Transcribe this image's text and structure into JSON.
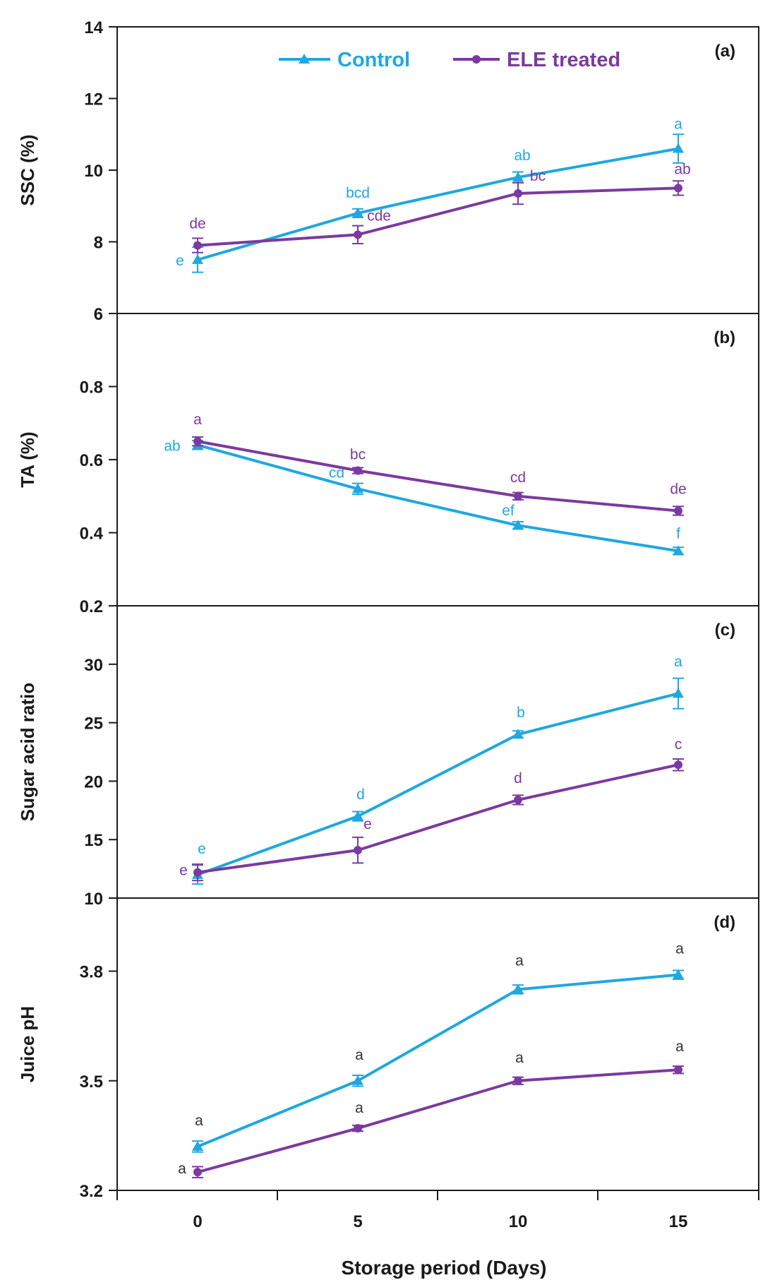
{
  "colors": {
    "control": "#1fa8df",
    "ele": "#7b3aa0",
    "axis": "#1a1a1a",
    "letter_dark": "#333333"
  },
  "legend": {
    "control": "Control",
    "ele": "ELE treated"
  },
  "xlabel": "Storage period (Days)",
  "x_ticks": [
    "0",
    "5",
    "10",
    "15"
  ],
  "chart_data": [
    {
      "type": "line",
      "panel_label": "(a)",
      "ylabel": "SSC (%)",
      "ylim": [
        6,
        14
      ],
      "yticks": [
        "6",
        "8",
        "10",
        "12",
        "14"
      ],
      "x": [
        0,
        5,
        10,
        15
      ],
      "series": [
        {
          "name": "Control",
          "values": [
            7.5,
            8.8,
            9.8,
            10.6
          ],
          "errors": [
            0.35,
            0.12,
            0.15,
            0.4
          ],
          "letters": [
            "e",
            "bcd",
            "ab",
            "a"
          ]
        },
        {
          "name": "ELE treated",
          "values": [
            7.9,
            8.2,
            9.35,
            9.5
          ],
          "errors": [
            0.2,
            0.25,
            0.3,
            0.2
          ],
          "letters": [
            "de",
            "cde",
            "bc",
            "ab"
          ]
        }
      ]
    },
    {
      "type": "line",
      "panel_label": "(b)",
      "ylabel": "TA (%)",
      "ylim": [
        0.2,
        1.0
      ],
      "yticks": [
        "0.2",
        "0.4",
        "0.6",
        "0.8"
      ],
      "x": [
        0,
        5,
        10,
        15
      ],
      "series": [
        {
          "name": "Control",
          "values": [
            0.64,
            0.52,
            0.42,
            0.35
          ],
          "errors": [
            0.012,
            0.015,
            0.01,
            0.01
          ],
          "letters": [
            "ab",
            "cd",
            "ef",
            "f"
          ]
        },
        {
          "name": "ELE treated",
          "values": [
            0.65,
            0.57,
            0.5,
            0.46
          ],
          "errors": [
            0.012,
            0.008,
            0.01,
            0.012
          ],
          "letters": [
            "a",
            "bc",
            "cd",
            "de"
          ]
        }
      ]
    },
    {
      "type": "line",
      "panel_label": "(c)",
      "ylabel": "Sugar acid ratio",
      "ylim": [
        10,
        35
      ],
      "yticks": [
        "10",
        "15",
        "20",
        "25",
        "30"
      ],
      "x": [
        0,
        5,
        10,
        15
      ],
      "series": [
        {
          "name": "Control",
          "values": [
            12.0,
            17.0,
            24.0,
            27.5
          ],
          "errors": [
            0.8,
            0.4,
            0.3,
            1.3
          ],
          "letters": [
            "e",
            "d",
            "b",
            "a"
          ]
        },
        {
          "name": "ELE treated",
          "values": [
            12.2,
            14.1,
            18.4,
            21.4
          ],
          "errors": [
            0.7,
            1.1,
            0.4,
            0.5
          ],
          "letters": [
            "e",
            "e",
            "d",
            "c"
          ]
        }
      ]
    },
    {
      "type": "line",
      "panel_label": "(d)",
      "ylabel": "Juice pH",
      "ylim": [
        3.2,
        4.0
      ],
      "yticks": [
        "3.2",
        "3.5",
        "3.8"
      ],
      "yticks_at": [
        3.2,
        3.5,
        3.8
      ],
      "x": [
        0,
        5,
        10,
        15
      ],
      "series": [
        {
          "name": "Control",
          "values": [
            3.32,
            3.5,
            3.75,
            3.79
          ],
          "errors": [
            0.015,
            0.015,
            0.012,
            0.012
          ],
          "letters": [
            "a",
            "a",
            "a",
            "a"
          ]
        },
        {
          "name": "ELE treated",
          "values": [
            3.25,
            3.37,
            3.5,
            3.53
          ],
          "errors": [
            0.015,
            0.008,
            0.01,
            0.01
          ],
          "letters": [
            "a",
            "a",
            "a",
            "a"
          ]
        }
      ]
    }
  ]
}
